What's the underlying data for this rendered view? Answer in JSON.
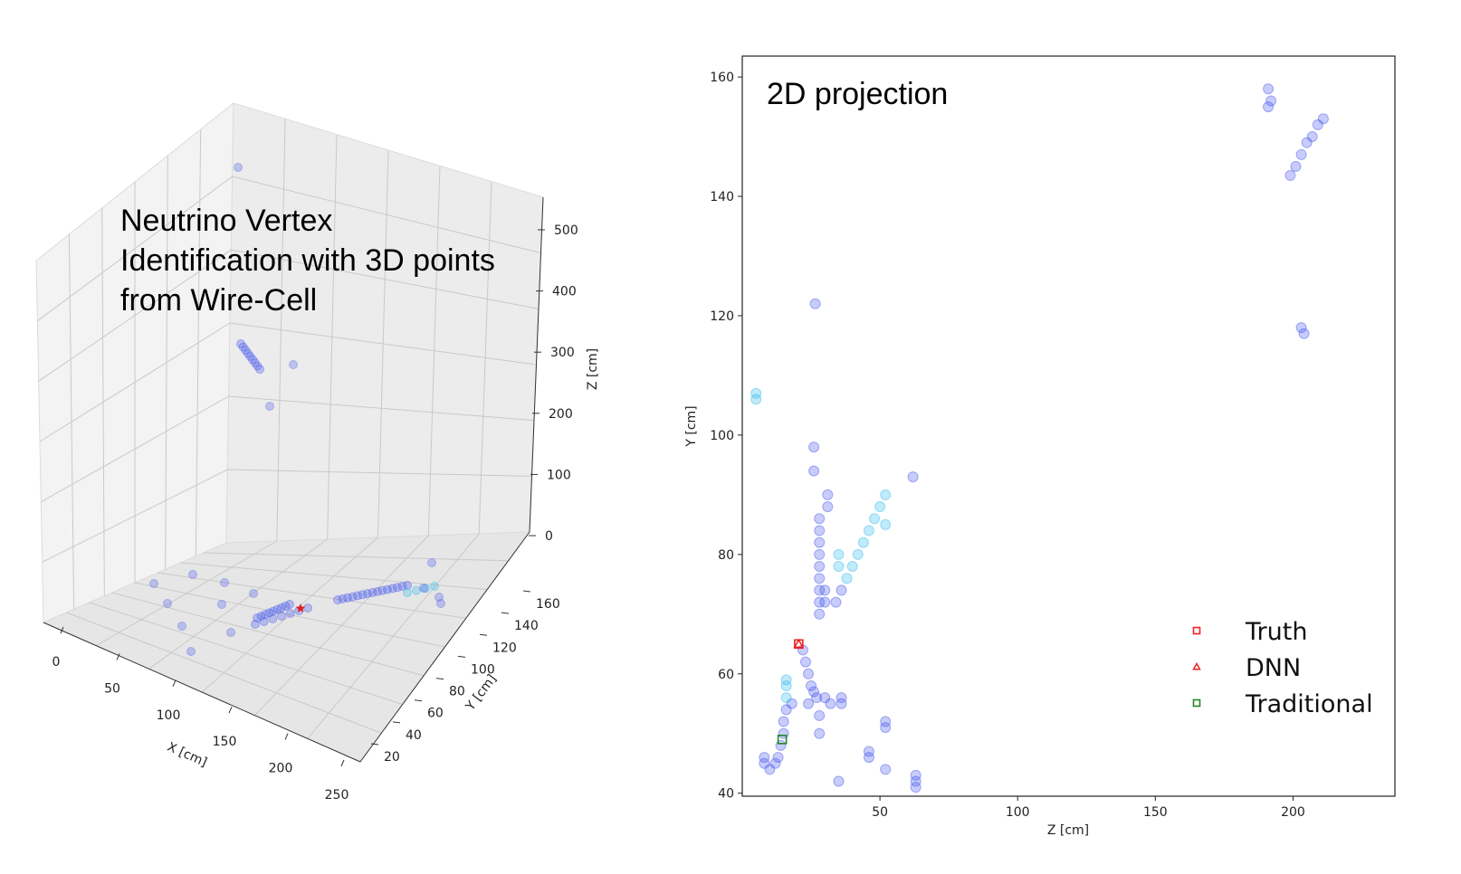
{
  "left_panel": {
    "title_lines": [
      "Neutrino Vertex",
      "Identification with 3D points",
      "from Wire-Cell"
    ],
    "x_label": "X [cm]",
    "y_label": "Y [cm]",
    "z_label": "Z [cm]",
    "x_ticks": [
      "0",
      "50",
      "100",
      "150",
      "200",
      "250"
    ],
    "y_ticks": [
      "20",
      "40",
      "60",
      "80",
      "100",
      "120",
      "140",
      "160"
    ],
    "z_ticks": [
      "0",
      "100",
      "200",
      "300",
      "400",
      "500"
    ]
  },
  "chart_data": {
    "type": "scatter",
    "title": "2D projection",
    "xlabel": "Z [cm]",
    "ylabel": "Y [cm]",
    "xlim": [
      0,
      237
    ],
    "ylim": [
      39.5,
      163.5
    ],
    "x_ticks": [
      50,
      100,
      150,
      200
    ],
    "y_ticks": [
      40,
      60,
      80,
      100,
      120,
      140,
      160
    ],
    "legend_position": "bottom-right",
    "grid": false,
    "colors": {
      "points": "#4455ee",
      "points_light": "#33bbee",
      "truth": "#ee2222",
      "dnn": "#ee2222",
      "traditional": "#228822"
    },
    "series": [
      {
        "name": "Truth",
        "marker": "square",
        "color": "#ee2222",
        "points": [
          [
            20.5,
            65
          ]
        ]
      },
      {
        "name": "DNN",
        "marker": "triangle",
        "color": "#ee2222",
        "points": [
          [
            20.5,
            65
          ]
        ]
      },
      {
        "name": "Traditional",
        "marker": "square",
        "color": "#228822",
        "points": [
          [
            14.5,
            49
          ]
        ]
      }
    ],
    "hits": [
      [
        191,
        158
      ],
      [
        192,
        156
      ],
      [
        191,
        155
      ],
      [
        199,
        143.5
      ],
      [
        201,
        145
      ],
      [
        203,
        147
      ],
      [
        205,
        149
      ],
      [
        207,
        150
      ],
      [
        209,
        152
      ],
      [
        211,
        153
      ],
      [
        26.5,
        122
      ],
      [
        203,
        118
      ],
      [
        204,
        117
      ],
      [
        5,
        107
      ],
      [
        5,
        106
      ],
      [
        26,
        98
      ],
      [
        26,
        94
      ],
      [
        62,
        93
      ],
      [
        52,
        90
      ],
      [
        50,
        88
      ],
      [
        48,
        86
      ],
      [
        46,
        84
      ],
      [
        44,
        82
      ],
      [
        42,
        80
      ],
      [
        40,
        78
      ],
      [
        38,
        76
      ],
      [
        36,
        74
      ],
      [
        34,
        72
      ],
      [
        52,
        85
      ],
      [
        35,
        80
      ],
      [
        35,
        78
      ],
      [
        31,
        90
      ],
      [
        31,
        88
      ],
      [
        28,
        86
      ],
      [
        28,
        84
      ],
      [
        28,
        82
      ],
      [
        28,
        80
      ],
      [
        28,
        78
      ],
      [
        28,
        76
      ],
      [
        28,
        74
      ],
      [
        28,
        72
      ],
      [
        28,
        70
      ],
      [
        30,
        74
      ],
      [
        30,
        72
      ],
      [
        22,
        64
      ],
      [
        23,
        62
      ],
      [
        24,
        60
      ],
      [
        25,
        58
      ],
      [
        26,
        57
      ],
      [
        27,
        56
      ],
      [
        30,
        56
      ],
      [
        32,
        55
      ],
      [
        36,
        55
      ],
      [
        36,
        56
      ],
      [
        28,
        53
      ],
      [
        28,
        50
      ],
      [
        24,
        55
      ],
      [
        18,
        55
      ],
      [
        16,
        56
      ],
      [
        16,
        54
      ],
      [
        15,
        52
      ],
      [
        15,
        50
      ],
      [
        14,
        48
      ],
      [
        13,
        46
      ],
      [
        12,
        45
      ],
      [
        10,
        44
      ],
      [
        8,
        46
      ],
      [
        8,
        45
      ],
      [
        16,
        58
      ],
      [
        16,
        59
      ],
      [
        46,
        47
      ],
      [
        46,
        46
      ],
      [
        52,
        52
      ],
      [
        52,
        51
      ],
      [
        52,
        44
      ],
      [
        63,
        43
      ],
      [
        63,
        42
      ],
      [
        63,
        41
      ],
      [
        35,
        42
      ]
    ]
  }
}
